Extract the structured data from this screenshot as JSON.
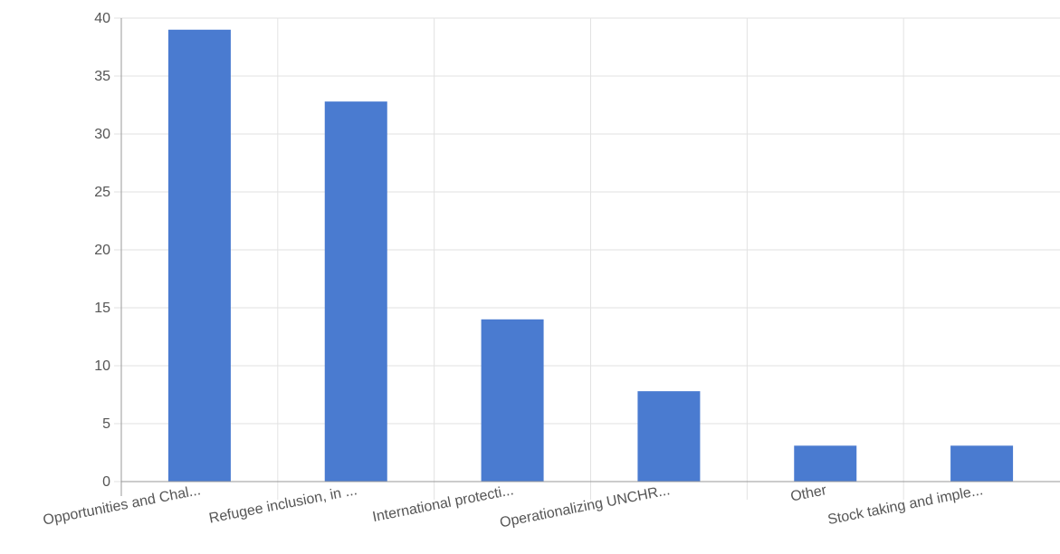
{
  "chart_data": {
    "type": "bar",
    "categories": [
      "Opportunities and Chal...",
      "Refugee inclusion, in ...",
      "International protecti...",
      "Operationalizing UNCHR...",
      "Other",
      "Stock taking and imple..."
    ],
    "values": [
      39,
      32.8,
      14,
      7.8,
      3.1,
      3.1
    ],
    "ylim": [
      0,
      40
    ],
    "yticks": [
      0,
      5,
      10,
      15,
      20,
      25,
      30,
      35,
      40
    ],
    "grid": true,
    "legend": "none",
    "title": "",
    "xlabel": "",
    "ylabel": "",
    "colors": {
      "bar": "#4a7bd0"
    }
  }
}
